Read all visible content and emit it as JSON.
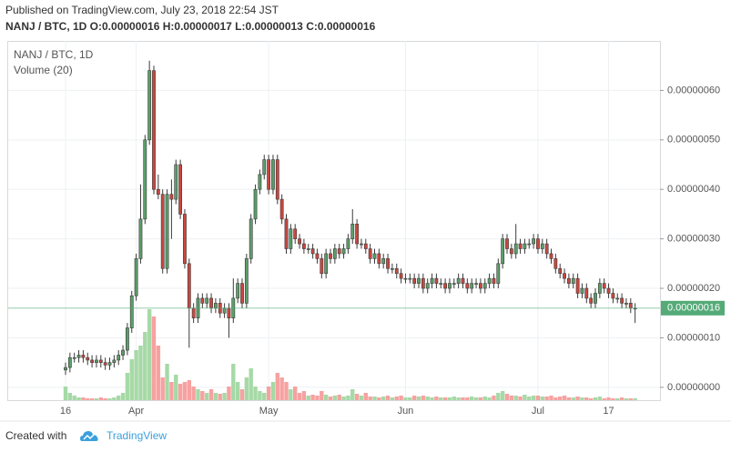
{
  "header": {
    "published": "Published on TradingView.com, July 23, 2018 22:54 JST",
    "ohlc_line": "NANJ / BTC, 1D O:0.00000016 H:0.00000017 L:0.00000013 C:0.00000016"
  },
  "footer": {
    "created_with": "Created with",
    "brand": "TradingView"
  },
  "chart_data": {
    "type": "candlestick",
    "symbol": "NANJ / BTC, 1D",
    "volume_title": "Volume (20)",
    "categories": [
      "16",
      null,
      null,
      null,
      null,
      null,
      null,
      null,
      null,
      null,
      null,
      null,
      null,
      null,
      null,
      null,
      "Apr",
      null,
      null,
      null,
      null,
      null,
      null,
      null,
      null,
      null,
      null,
      null,
      null,
      null,
      null,
      null,
      null,
      null,
      null,
      null,
      null,
      null,
      null,
      null,
      null,
      null,
      null,
      null,
      null,
      null,
      "May",
      null,
      null,
      null,
      null,
      null,
      null,
      null,
      null,
      null,
      null,
      null,
      null,
      null,
      null,
      null,
      null,
      null,
      null,
      null,
      null,
      null,
      null,
      null,
      null,
      null,
      null,
      null,
      null,
      null,
      null,
      "Jun",
      null,
      null,
      null,
      null,
      null,
      null,
      null,
      null,
      null,
      null,
      null,
      null,
      null,
      null,
      null,
      null,
      null,
      null,
      null,
      null,
      null,
      null,
      null,
      null,
      null,
      null,
      null,
      null,
      null,
      "Jul",
      null,
      null,
      null,
      null,
      null,
      null,
      null,
      null,
      null,
      null,
      null,
      null,
      null,
      null,
      null,
      "17",
      null,
      null,
      null,
      null,
      null,
      null
    ],
    "open": [
      3.5e-08,
      4e-08,
      6e-08,
      6e-08,
      6.5e-08,
      6e-08,
      5.5e-08,
      5e-08,
      5.5e-08,
      5e-08,
      4.5e-08,
      5e-08,
      5.5e-08,
      6.5e-08,
      7.5e-08,
      1.2e-07,
      1.85e-07,
      2.6e-07,
      3.4e-07,
      5e-07,
      6.4e-07,
      4e-07,
      3.9e-07,
      2.4e-07,
      3.9e-07,
      3.8e-07,
      4.5e-07,
      3.5e-07,
      2.5e-07,
      1.6e-07,
      1.4e-07,
      1.8e-07,
      1.7e-07,
      1.8e-07,
      1.6e-07,
      1.7e-07,
      1.5e-07,
      1.6e-07,
      1.4e-07,
      1.8e-07,
      2.1e-07,
      1.7e-07,
      2.6e-07,
      3.4e-07,
      4e-07,
      4.3e-07,
      4.6e-07,
      4e-07,
      4.6e-07,
      3.8e-07,
      3.4e-07,
      2.8e-07,
      3.2e-07,
      3e-07,
      2.9e-07,
      2.8e-07,
      2.8e-07,
      2.7e-07,
      2.6e-07,
      2.3e-07,
      2.7e-07,
      2.6e-07,
      2.8e-07,
      2.7e-07,
      2.8e-07,
      3e-07,
      3.3e-07,
      2.9e-07,
      2.9e-07,
      2.8e-07,
      2.6e-07,
      2.7e-07,
      2.5e-07,
      2.6e-07,
      2.4e-07,
      2.4e-07,
      2.3e-07,
      2.2e-07,
      2.2e-07,
      2.2e-07,
      2.1e-07,
      2.2e-07,
      2e-07,
      2.1e-07,
      2.2e-07,
      2.1e-07,
      2.1e-07,
      2e-07,
      2.1e-07,
      2.1e-07,
      2.2e-07,
      2.1e-07,
      2e-07,
      2.1e-07,
      2.1e-07,
      2e-07,
      2.1e-07,
      2.2e-07,
      2.1e-07,
      2.5e-07,
      3e-07,
      2.8e-07,
      2.7e-07,
      2.9e-07,
      2.8e-07,
      2.9e-07,
      2.9e-07,
      3e-07,
      2.8e-07,
      2.9e-07,
      2.7e-07,
      2.6e-07,
      2.4e-07,
      2.3e-07,
      2.2e-07,
      2.1e-07,
      2.2e-07,
      1.9e-07,
      2e-07,
      1.8e-07,
      1.7e-07,
      1.9e-07,
      2.1e-07,
      2e-07,
      1.9e-07,
      1.8e-07,
      1.8e-07,
      1.7e-07,
      1.7e-07,
      1.6e-07
    ],
    "high": [
      5e-08,
      7e-08,
      7e-08,
      7.5e-08,
      7.5e-08,
      7e-08,
      6.5e-08,
      6.5e-08,
      6.5e-08,
      6e-08,
      6e-08,
      6.5e-08,
      7.5e-08,
      8.5e-08,
      1.3e-07,
      1.95e-07,
      2.7e-07,
      4.1e-07,
      5.1e-07,
      6.6e-07,
      6.5e-07,
      4.3e-07,
      4e-07,
      4e-07,
      4.2e-07,
      4.6e-07,
      4.6e-07,
      3.6e-07,
      2.6e-07,
      1.7e-07,
      1.9e-07,
      1.9e-07,
      1.9e-07,
      1.9e-07,
      1.8e-07,
      1.8e-07,
      1.7e-07,
      1.7e-07,
      2.2e-07,
      2.2e-07,
      2.2e-07,
      2.7e-07,
      3.5e-07,
      4.1e-07,
      4.4e-07,
      4.7e-07,
      4.7e-07,
      4.7e-07,
      4.7e-07,
      3.9e-07,
      3.5e-07,
      3.3e-07,
      3.3e-07,
      3.1e-07,
      3e-07,
      2.9e-07,
      2.9e-07,
      2.8e-07,
      2.7e-07,
      2.8e-07,
      2.8e-07,
      2.9e-07,
      2.9e-07,
      2.9e-07,
      3.1e-07,
      3.6e-07,
      3.4e-07,
      3e-07,
      3e-07,
      2.9e-07,
      2.8e-07,
      2.8e-07,
      2.7e-07,
      2.7e-07,
      2.5e-07,
      2.5e-07,
      2.4e-07,
      2.3e-07,
      2.3e-07,
      2.3e-07,
      2.3e-07,
      2.3e-07,
      2.2e-07,
      2.3e-07,
      2.3e-07,
      2.2e-07,
      2.2e-07,
      2.2e-07,
      2.2e-07,
      2.3e-07,
      2.3e-07,
      2.2e-07,
      2.2e-07,
      2.2e-07,
      2.2e-07,
      2.2e-07,
      2.3e-07,
      2.3e-07,
      2.6e-07,
      3.1e-07,
      3.1e-07,
      2.9e-07,
      3.3e-07,
      3e-07,
      3e-07,
      3e-07,
      3.1e-07,
      3.1e-07,
      3e-07,
      3e-07,
      2.8e-07,
      2.7e-07,
      2.5e-07,
      2.4e-07,
      2.3e-07,
      2.3e-07,
      2.3e-07,
      2.1e-07,
      2.1e-07,
      1.9e-07,
      2e-07,
      2.2e-07,
      2.2e-07,
      2.1e-07,
      2e-07,
      1.9e-07,
      1.9e-07,
      1.8e-07,
      1.8e-07,
      1.7e-07
    ],
    "low": [
      2.5e-08,
      3e-08,
      5e-08,
      5e-08,
      5e-08,
      4.5e-08,
      4e-08,
      4e-08,
      4e-08,
      3.5e-08,
      3.5e-08,
      4e-08,
      4.5e-08,
      5.5e-08,
      6.5e-08,
      1.1e-07,
      1.75e-07,
      2.5e-07,
      3.3e-07,
      4.9e-07,
      3.9e-07,
      3.8e-07,
      2.3e-07,
      2.3e-07,
      3e-07,
      3.7e-07,
      3.4e-07,
      2.4e-07,
      8e-08,
      1.3e-07,
      1.3e-07,
      1.6e-07,
      1.6e-07,
      1.5e-07,
      1.5e-07,
      1.4e-07,
      1.4e-07,
      1e-07,
      1.3e-07,
      1.7e-07,
      1.6e-07,
      1.6e-07,
      2.5e-07,
      3.3e-07,
      3.9e-07,
      4.2e-07,
      3.9e-07,
      3.9e-07,
      3.7e-07,
      3.3e-07,
      2.7e-07,
      2.7e-07,
      2.9e-07,
      2.8e-07,
      2.7e-07,
      2.7e-07,
      2.6e-07,
      2.5e-07,
      2.2e-07,
      2.2e-07,
      2.5e-07,
      2.5e-07,
      2.6e-07,
      2.6e-07,
      2.7e-07,
      2.9e-07,
      2.8e-07,
      2.8e-07,
      2.7e-07,
      2.5e-07,
      2.5e-07,
      2.4e-07,
      2.4e-07,
      2.3e-07,
      2.3e-07,
      2.2e-07,
      2.1e-07,
      2.1e-07,
      2.1e-07,
      2e-07,
      2e-07,
      1.9e-07,
      1.9e-07,
      2e-07,
      2e-07,
      2e-07,
      1.9e-07,
      1.9e-07,
      2e-07,
      2e-07,
      2e-07,
      1.9e-07,
      1.9e-07,
      2e-07,
      1.9e-07,
      1.9e-07,
      2e-07,
      2e-07,
      2e-07,
      2.4e-07,
      2.7e-07,
      2.6e-07,
      2.6e-07,
      2.7e-07,
      2.7e-07,
      2.8e-07,
      2.8e-07,
      2.7e-07,
      2.7e-07,
      2.6e-07,
      2.5e-07,
      2.3e-07,
      2.2e-07,
      2.1e-07,
      2e-07,
      2e-07,
      1.8e-07,
      1.8e-07,
      1.7e-07,
      1.6e-07,
      1.6e-07,
      1.8e-07,
      1.9e-07,
      1.8e-07,
      1.7e-07,
      1.7e-07,
      1.6e-07,
      1.6e-07,
      1.5e-07,
      1.3e-07
    ],
    "close": [
      4e-08,
      6e-08,
      6e-08,
      6.5e-08,
      6e-08,
      5.5e-08,
      5e-08,
      5.5e-08,
      5e-08,
      4.5e-08,
      5e-08,
      5.5e-08,
      6.5e-08,
      7.5e-08,
      1.2e-07,
      1.85e-07,
      2.6e-07,
      3.4e-07,
      5e-07,
      6.4e-07,
      4e-07,
      3.9e-07,
      2.4e-07,
      3.9e-07,
      3.8e-07,
      4.5e-07,
      3.5e-07,
      2.5e-07,
      1.6e-07,
      1.4e-07,
      1.8e-07,
      1.7e-07,
      1.8e-07,
      1.6e-07,
      1.7e-07,
      1.5e-07,
      1.6e-07,
      1.4e-07,
      1.8e-07,
      2.1e-07,
      1.7e-07,
      2.6e-07,
      3.4e-07,
      4e-07,
      4.3e-07,
      4.6e-07,
      4e-07,
      4.6e-07,
      3.8e-07,
      3.4e-07,
      2.8e-07,
      3.2e-07,
      3e-07,
      2.9e-07,
      2.8e-07,
      2.8e-07,
      2.7e-07,
      2.6e-07,
      2.3e-07,
      2.7e-07,
      2.6e-07,
      2.8e-07,
      2.7e-07,
      2.8e-07,
      3e-07,
      3.3e-07,
      2.9e-07,
      2.9e-07,
      2.8e-07,
      2.6e-07,
      2.7e-07,
      2.5e-07,
      2.6e-07,
      2.4e-07,
      2.4e-07,
      2.3e-07,
      2.2e-07,
      2.2e-07,
      2.2e-07,
      2.1e-07,
      2.2e-07,
      2e-07,
      2.1e-07,
      2.2e-07,
      2.1e-07,
      2.1e-07,
      2e-07,
      2.1e-07,
      2.1e-07,
      2.2e-07,
      2.1e-07,
      2e-07,
      2.1e-07,
      2.1e-07,
      2e-07,
      2.1e-07,
      2.2e-07,
      2.1e-07,
      2.5e-07,
      3e-07,
      2.8e-07,
      2.7e-07,
      2.9e-07,
      2.8e-07,
      2.9e-07,
      2.9e-07,
      3e-07,
      2.8e-07,
      2.9e-07,
      2.7e-07,
      2.6e-07,
      2.4e-07,
      2.3e-07,
      2.2e-07,
      2.1e-07,
      2.2e-07,
      1.9e-07,
      2e-07,
      1.8e-07,
      1.7e-07,
      1.9e-07,
      2.1e-07,
      2e-07,
      1.9e-07,
      1.8e-07,
      1.8e-07,
      1.7e-07,
      1.7e-07,
      1.6e-07,
      1.6e-07
    ],
    "volume": [
      15,
      8,
      5,
      3,
      3,
      2,
      2,
      2,
      3,
      2,
      2,
      3,
      5,
      8,
      30,
      45,
      55,
      60,
      75,
      100,
      92,
      60,
      25,
      40,
      20,
      28,
      18,
      20,
      22,
      15,
      12,
      10,
      8,
      12,
      8,
      7,
      8,
      15,
      40,
      20,
      12,
      25,
      35,
      15,
      10,
      8,
      15,
      20,
      30,
      25,
      20,
      12,
      15,
      8,
      10,
      5,
      6,
      5,
      10,
      6,
      4,
      5,
      6,
      4,
      5,
      12,
      7,
      5,
      8,
      4,
      4,
      3,
      4,
      5,
      3,
      4,
      5,
      3,
      3,
      5,
      4,
      5,
      4,
      3,
      4,
      3,
      3,
      3,
      4,
      3,
      3,
      3,
      4,
      3,
      3,
      4,
      3,
      5,
      8,
      10,
      7,
      5,
      5,
      4,
      6,
      4,
      5,
      5,
      4,
      4,
      5,
      3,
      4,
      5,
      3,
      3,
      4,
      3,
      3,
      2,
      3,
      4,
      2,
      3,
      2,
      2,
      3,
      2,
      2,
      2
    ],
    "volume_lim": [
      0,
      100
    ],
    "ylim": [
      -2.6e-08,
      7e-07
    ],
    "yticks": [
      {
        "value": 0,
        "label": "0.00000000"
      },
      {
        "value": 1e-07,
        "label": "0.00000010"
      },
      {
        "value": 2e-07,
        "label": "0.00000020"
      },
      {
        "value": 3e-07,
        "label": "0.00000030"
      },
      {
        "value": 4e-07,
        "label": "0.00000040"
      },
      {
        "value": 5e-07,
        "label": "0.00000050"
      },
      {
        "value": 6e-07,
        "label": "0.00000060"
      }
    ],
    "last_price": {
      "value": 1.6e-07,
      "label": "0.00000016"
    },
    "grid": true,
    "colors": {
      "up": "#5b9e6a",
      "down": "#c9473f",
      "volume_up": "#a6d9a6",
      "volume_down": "#f7a1a1",
      "last_price": "#54ab78"
    }
  }
}
